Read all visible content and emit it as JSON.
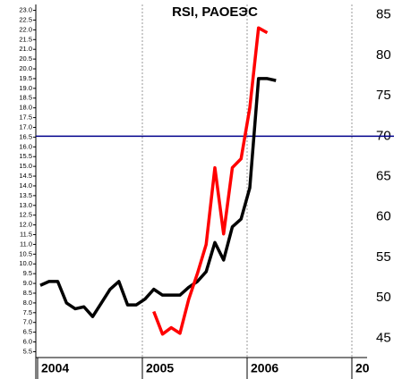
{
  "chart_data": {
    "type": "line",
    "title": "RSI, РАОЕЭС",
    "categories": [
      "2004",
      null,
      null,
      null,
      null,
      null,
      null,
      null,
      null,
      null,
      null,
      null,
      "2005",
      null,
      null,
      null,
      null,
      null,
      null,
      null,
      null,
      null,
      null,
      null,
      "2006",
      null,
      null,
      null,
      null,
      null,
      null,
      null,
      null,
      null,
      null,
      null,
      "20",
      null
    ],
    "series": [
      {
        "color": "#000000",
        "axis": "y",
        "values": [
          8.9,
          9.1,
          9.1,
          8.0,
          7.7,
          7.8,
          7.3,
          8.0,
          8.7,
          9.1,
          7.9,
          7.9,
          8.2,
          8.7,
          8.4,
          8.4,
          8.4,
          8.8,
          9.1,
          9.6,
          11.1,
          10.2,
          11.9,
          12.3,
          13.9,
          19.5,
          19.5,
          19.4,
          null,
          null,
          null,
          null,
          null,
          null,
          null,
          null,
          null,
          null
        ]
      },
      {
        "color": "#ff0000",
        "axis": "y2",
        "values": [
          null,
          null,
          null,
          null,
          null,
          null,
          null,
          null,
          null,
          null,
          null,
          null,
          null,
          48.3,
          45.5,
          46.3,
          45.6,
          49.8,
          53.0,
          56.6,
          66.1,
          57.9,
          66.1,
          67.2,
          73.5,
          83.4,
          82.8,
          null,
          null,
          null,
          null,
          null,
          null,
          null,
          null,
          null,
          null,
          null
        ]
      }
    ],
    "ylim": [
      5.2,
      23.3
    ],
    "yticks": [
      5.5,
      {
        "value": 6,
        "label": "6.0"
      },
      6.5,
      {
        "value": 7,
        "label": "7.0"
      },
      7.5,
      {
        "value": 8,
        "label": "8.0"
      },
      8.5,
      {
        "value": 9,
        "label": "9.0"
      },
      9.5,
      {
        "value": 10,
        "label": "10.0"
      },
      10.5,
      {
        "value": 11,
        "label": "11.0"
      },
      11.5,
      {
        "value": 12,
        "label": "12.0"
      },
      12.5,
      {
        "value": 13,
        "label": "13.0"
      },
      13.5,
      {
        "value": 14,
        "label": "14.0"
      },
      14.5,
      {
        "value": 15,
        "label": "15.0"
      },
      15.5,
      {
        "value": 16,
        "label": "16.0"
      },
      16.5,
      {
        "value": 17,
        "label": "17.0"
      },
      17.5,
      {
        "value": 18,
        "label": "18.0"
      },
      18.5,
      {
        "value": 19,
        "label": "19.0"
      },
      19.5,
      {
        "value": 20,
        "label": "20.0"
      },
      20.5,
      {
        "value": 21,
        "label": "21.0"
      },
      21.5,
      {
        "value": 22,
        "label": "22.0"
      },
      22.5,
      {
        "value": 23,
        "label": "23.0"
      }
    ],
    "y2lim": [
      42.6,
      86.3
    ],
    "y2ticks": [
      45,
      50,
      55,
      60,
      65,
      70,
      75,
      80,
      85
    ],
    "reference_line": {
      "value": 70,
      "axis": "y2",
      "color": "#00008b"
    }
  }
}
